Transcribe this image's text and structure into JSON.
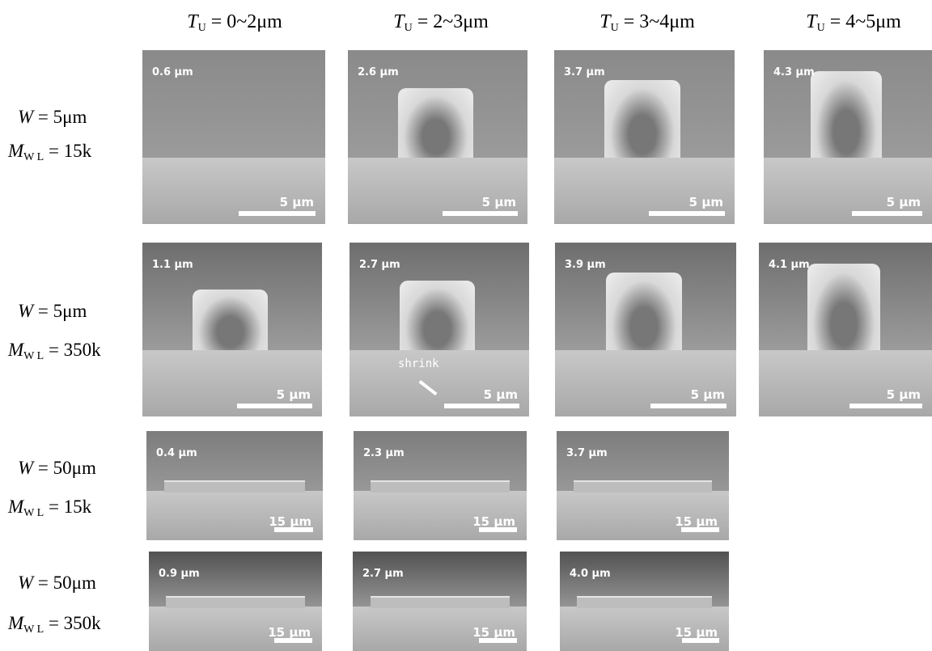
{
  "columns": [
    {
      "var": "T",
      "sub": "U",
      "text": "= 0~2μm"
    },
    {
      "var": "T",
      "sub": "U",
      "text": "= 2~3μm"
    },
    {
      "var": "T",
      "sub": "U",
      "text": "= 3~4μm"
    },
    {
      "var": "T",
      "sub": "U",
      "text": "= 4~5μm"
    }
  ],
  "rows": [
    {
      "w": {
        "var": "W",
        "text": "= 5μm"
      },
      "m": {
        "var": "M",
        "sub": "W L",
        "text": "= 15k"
      },
      "cells": [
        {
          "thickness": "0.6 μm",
          "scale": "5 μm"
        },
        {
          "thickness": "2.6 μm",
          "scale": "5 μm"
        },
        {
          "thickness": "3.7 μm",
          "scale": "5 μm"
        },
        {
          "thickness": "4.3 μm",
          "scale": "5 μm"
        }
      ]
    },
    {
      "w": {
        "var": "W",
        "text": "= 5μm"
      },
      "m": {
        "var": "M",
        "sub": "W L",
        "text": "= 350k"
      },
      "cells": [
        {
          "thickness": "1.1 μm",
          "scale": "5 μm"
        },
        {
          "thickness": "2.7 μm",
          "scale": "5 μm"
        },
        {
          "thickness": "3.9 μm",
          "scale": "5 μm"
        },
        {
          "thickness": "4.1 μm",
          "scale": "5 μm"
        }
      ]
    },
    {
      "w": {
        "var": "W",
        "text": "= 50μm"
      },
      "m": {
        "var": "M",
        "sub": "W L",
        "text": "= 15k"
      },
      "cells": [
        {
          "thickness": "0.4 μm",
          "scale": "15 μm"
        },
        {
          "thickness": "2.3 μm",
          "scale": "15 μm"
        },
        {
          "thickness": "3.7 μm",
          "scale": "15 μm"
        }
      ]
    },
    {
      "w": {
        "var": "W",
        "text": "= 50μm"
      },
      "m": {
        "var": "M",
        "sub": "W L",
        "text": "= 350k"
      },
      "cells": [
        {
          "thickness": "0.9 μm",
          "scale": "15 μm"
        },
        {
          "thickness": "2.7 μm",
          "scale": "15 μm"
        },
        {
          "thickness": "4.0 μm",
          "scale": "15 μm"
        }
      ]
    }
  ],
  "annotation": "shrink"
}
